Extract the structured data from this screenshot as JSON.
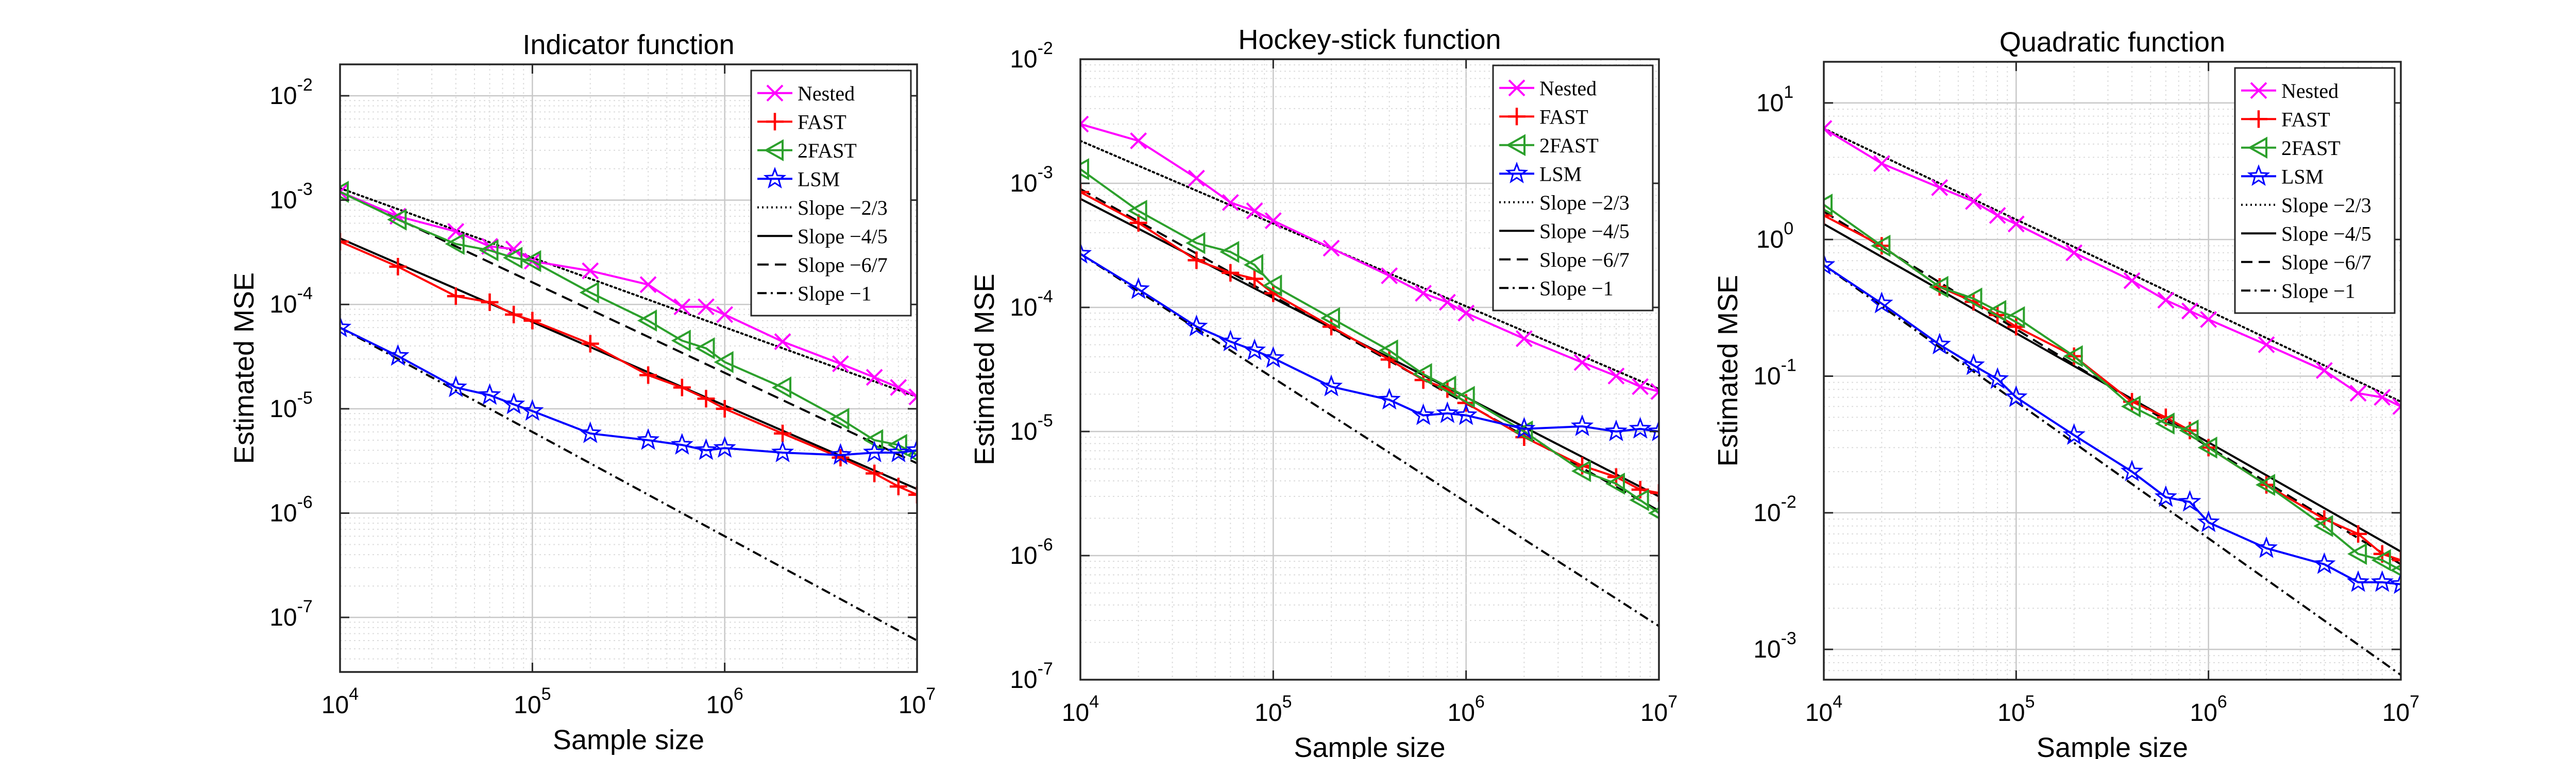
{
  "figure": {
    "xlabel": "Sample size",
    "ylabel": "Estimated MSE"
  },
  "legend_labels": [
    "Nested",
    "FAST",
    "2FAST",
    "LSM",
    "Slope −2/3",
    "Slope −4/5",
    "Slope −6/7",
    "Slope −1"
  ],
  "colors": {
    "Nested": "#ff00ff",
    "FAST": "#ff0000",
    "2FAST": "#2ca02c",
    "LSM": "#0000ff",
    "reference": "#000000"
  },
  "chart_data": [
    {
      "type": "line",
      "title": "Indicator function",
      "xlabel": "Sample size",
      "ylabel": "Estimated MSE",
      "xscale": "log",
      "yscale": "log",
      "xlim": [
        10000,
        10000000
      ],
      "ylim": [
        3e-08,
        0.02
      ],
      "xticks": [
        10000,
        100000,
        1000000,
        10000000
      ],
      "yticks": [
        1e-07,
        1e-06,
        1e-05,
        0.0001,
        0.001,
        0.01
      ],
      "grid": true,
      "legend": "top-right",
      "x": [
        10000,
        20000,
        40000,
        60000,
        80000,
        100000,
        200000,
        400000,
        600000,
        800000,
        1000000,
        2000000,
        4000000,
        6000000,
        8000000,
        10000000
      ],
      "series": [
        {
          "name": "Nested",
          "marker": "x",
          "values": [
            0.0012,
            0.0007,
            0.0005,
            0.00036,
            0.00034,
            0.00026,
            0.00021,
            0.000155,
            9.5e-05,
            9.5e-05,
            8e-05,
            4.4e-05,
            2.7e-05,
            2e-05,
            1.6e-05,
            1.3e-05
          ]
        },
        {
          "name": "FAST",
          "marker": "+",
          "values": [
            0.0004,
            0.00023,
            0.00012,
            0.000105,
            8e-05,
            7e-05,
            4.2e-05,
            2.1e-05,
            1.6e-05,
            1.25e-05,
            1e-05,
            5.8e-06,
            3.4e-06,
            2.4e-06,
            1.8e-06,
            1.5e-06
          ]
        },
        {
          "name": "2FAST",
          "marker": "triangle-left",
          "values": [
            0.0012,
            0.00065,
            0.00038,
            0.00033,
            0.00028,
            0.00026,
            0.00013,
            7e-05,
            4.5e-05,
            3.8e-05,
            2.8e-05,
            1.6e-05,
            8e-06,
            5e-06,
            4.5e-06,
            3.6e-06
          ]
        },
        {
          "name": "LSM",
          "marker": "pentagram",
          "values": [
            6e-05,
            3.2e-05,
            1.6e-05,
            1.35e-05,
            1.1e-05,
            9.5e-06,
            5.8e-06,
            5e-06,
            4.5e-06,
            4e-06,
            4.2e-06,
            3.8e-06,
            3.6e-06,
            3.8e-06,
            3.8e-06,
            4e-06
          ]
        },
        {
          "name": "Slope −2/3",
          "style": "dotted",
          "x": [
            10000,
            10000000
          ],
          "values": [
            0.0013,
            1.3e-05
          ]
        },
        {
          "name": "Slope −4/5",
          "style": "solid",
          "x": [
            10000,
            10000000
          ],
          "values": [
            0.00043,
            1.7e-06
          ]
        },
        {
          "name": "Slope −6/7",
          "style": "dashed",
          "x": [
            10000,
            10000000
          ],
          "values": [
            0.0012,
            3e-06
          ]
        },
        {
          "name": "Slope −1",
          "style": "dashdot",
          "x": [
            10000,
            10000000
          ],
          "values": [
            6e-05,
            6e-08
          ]
        }
      ]
    },
    {
      "type": "line",
      "title": "Hockey-stick function",
      "xlabel": "Sample size",
      "ylabel": "Estimated MSE",
      "xscale": "log",
      "yscale": "log",
      "xlim": [
        10000,
        10000000
      ],
      "ylim": [
        1e-07,
        0.01
      ],
      "xticks": [
        10000,
        100000,
        1000000,
        10000000
      ],
      "yticks": [
        1e-07,
        1e-06,
        1e-05,
        0.0001,
        0.001,
        0.01
      ],
      "grid": true,
      "legend": "top-right",
      "x": [
        10000,
        20000,
        40000,
        60000,
        80000,
        100000,
        200000,
        400000,
        600000,
        800000,
        1000000,
        2000000,
        4000000,
        6000000,
        8000000,
        10000000
      ],
      "series": [
        {
          "name": "Nested",
          "marker": "x",
          "values": [
            0.003,
            0.0022,
            0.0011,
            0.0007,
            0.0006,
            0.0005,
            0.0003,
            0.00018,
            0.00013,
            0.00011,
            9e-05,
            5.6e-05,
            3.6e-05,
            2.8e-05,
            2.3e-05,
            2.1e-05
          ]
        },
        {
          "name": "FAST",
          "marker": "+",
          "values": [
            0.00085,
            0.00048,
            0.00024,
            0.00019,
            0.00017,
            0.00013,
            7e-05,
            3.8e-05,
            2.6e-05,
            2.2e-05,
            1.7e-05,
            9e-06,
            5.3e-06,
            4.3e-06,
            3.4e-06,
            3.2e-06
          ]
        },
        {
          "name": "2FAST",
          "marker": "triangle-left",
          "values": [
            0.0013,
            0.0006,
            0.00033,
            0.00028,
            0.00022,
            0.00015,
            8.2e-05,
            4.5e-05,
            2.9e-05,
            2.3e-05,
            1.9e-05,
            1e-05,
            4.8e-06,
            3.8e-06,
            2.8e-06,
            2.2e-06
          ]
        },
        {
          "name": "LSM",
          "marker": "pentagram",
          "values": [
            0.00027,
            0.00014,
            7e-05,
            5.3e-05,
            4.5e-05,
            3.9e-05,
            2.3e-05,
            1.8e-05,
            1.35e-05,
            1.4e-05,
            1.35e-05,
            1.05e-05,
            1.1e-05,
            1e-05,
            1.05e-05,
            1e-05
          ]
        },
        {
          "name": "Slope −2/3",
          "style": "dotted",
          "x": [
            10000,
            10000000
          ],
          "values": [
            0.0022,
            2.2e-05
          ]
        },
        {
          "name": "Slope −4/5",
          "style": "solid",
          "x": [
            10000,
            10000000
          ],
          "values": [
            0.00075,
            3e-06
          ]
        },
        {
          "name": "Slope −6/7",
          "style": "dashed",
          "x": [
            10000,
            10000000
          ],
          "values": [
            0.0009,
            2.3e-06
          ]
        },
        {
          "name": "Slope −1",
          "style": "dashdot",
          "x": [
            10000,
            10000000
          ],
          "values": [
            0.00027,
            2.7e-07
          ]
        }
      ]
    },
    {
      "type": "line",
      "title": "Quadratic function",
      "xlabel": "Sample size",
      "ylabel": "Estimated MSE",
      "xscale": "log",
      "yscale": "log",
      "xlim": [
        10000,
        10000000
      ],
      "ylim": [
        0.0006,
        20
      ],
      "xticks": [
        10000,
        100000,
        1000000,
        10000000
      ],
      "yticks": [
        0.001,
        0.01,
        0.1,
        1,
        10
      ],
      "grid": true,
      "legend": "top-right",
      "x": [
        10000,
        20000,
        40000,
        60000,
        80000,
        100000,
        200000,
        400000,
        600000,
        800000,
        1000000,
        2000000,
        4000000,
        6000000,
        8000000,
        10000000
      ],
      "series": [
        {
          "name": "Nested",
          "marker": "x",
          "values": [
            6.5,
            3.6,
            2.4,
            1.9,
            1.5,
            1.3,
            0.8,
            0.5,
            0.36,
            0.3,
            0.26,
            0.17,
            0.11,
            0.075,
            0.07,
            0.06
          ]
        },
        {
          "name": "FAST",
          "marker": "+",
          "values": [
            1.5,
            0.9,
            0.45,
            0.35,
            0.28,
            0.23,
            0.14,
            0.065,
            0.05,
            0.04,
            0.03,
            0.016,
            0.009,
            0.007,
            0.005,
            0.0045
          ]
        },
        {
          "name": "2FAST",
          "marker": "triangle-left",
          "values": [
            1.8,
            0.9,
            0.45,
            0.37,
            0.3,
            0.27,
            0.14,
            0.06,
            0.045,
            0.04,
            0.03,
            0.016,
            0.008,
            0.005,
            0.0045,
            0.0038
          ]
        },
        {
          "name": "LSM",
          "marker": "pentagram",
          "values": [
            0.65,
            0.34,
            0.17,
            0.12,
            0.095,
            0.07,
            0.037,
            0.02,
            0.013,
            0.012,
            0.0085,
            0.0055,
            0.0042,
            0.0031,
            0.0031,
            0.003
          ]
        },
        {
          "name": "Slope −2/3",
          "style": "dotted",
          "x": [
            10000,
            10000000
          ],
          "values": [
            6.5,
            0.065
          ]
        },
        {
          "name": "Slope −4/5",
          "style": "solid",
          "x": [
            10000,
            10000000
          ],
          "values": [
            1.3,
            0.0052
          ]
        },
        {
          "name": "Slope −6/7",
          "style": "dashed",
          "x": [
            10000,
            10000000
          ],
          "values": [
            1.6,
            0.0042
          ]
        },
        {
          "name": "Slope −1",
          "style": "dashdot",
          "x": [
            10000,
            10000000
          ],
          "values": [
            0.65,
            0.00065
          ]
        }
      ]
    }
  ]
}
